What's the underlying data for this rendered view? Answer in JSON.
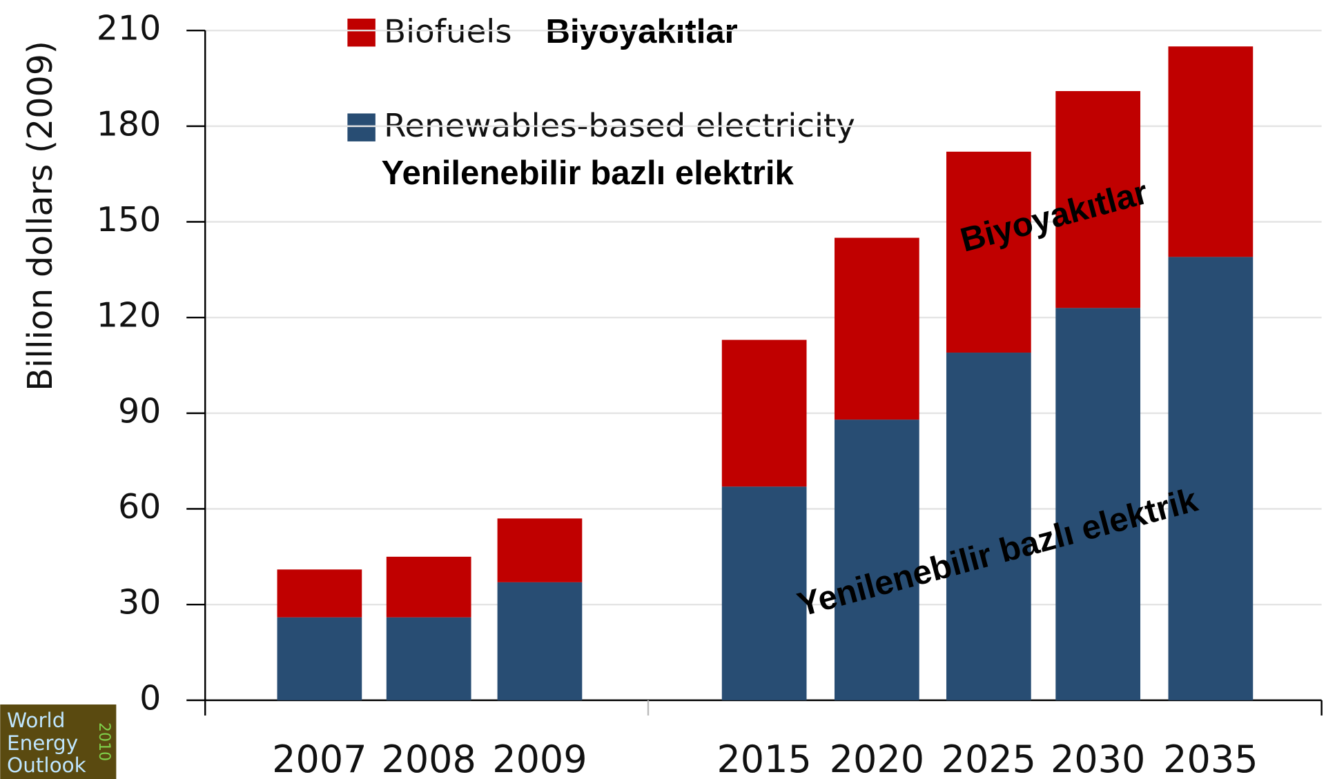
{
  "chart_data": {
    "type": "stacked_bar",
    "y_label": "Billion dollars (2009)",
    "categories": [
      "2007",
      "2008",
      "2009",
      "2015",
      "2020",
      "2025",
      "2030",
      "2035"
    ],
    "series": [
      {
        "name": "Renewables-based electricity",
        "translation": "Yenilenebilir bazlı elektrik",
        "color": "#284d73",
        "values": [
          26,
          26,
          37,
          67,
          88,
          109,
          123,
          139
        ]
      },
      {
        "name": "Biofuels",
        "translation": "Biyoyakıtlar",
        "color": "#c00000",
        "values": [
          15,
          19,
          20,
          46,
          57,
          63,
          68,
          66
        ]
      }
    ],
    "ylim": [
      0,
      210
    ],
    "yticks": [
      0,
      30,
      60,
      90,
      120,
      150,
      180,
      210
    ],
    "grid": true,
    "annotations": [
      "Biyoyakıtlar",
      "Yenilenebilir bazlı elektrik"
    ],
    "logo": {
      "lines": [
        "World",
        "Energy",
        "Outlook"
      ],
      "year": "2010"
    }
  }
}
